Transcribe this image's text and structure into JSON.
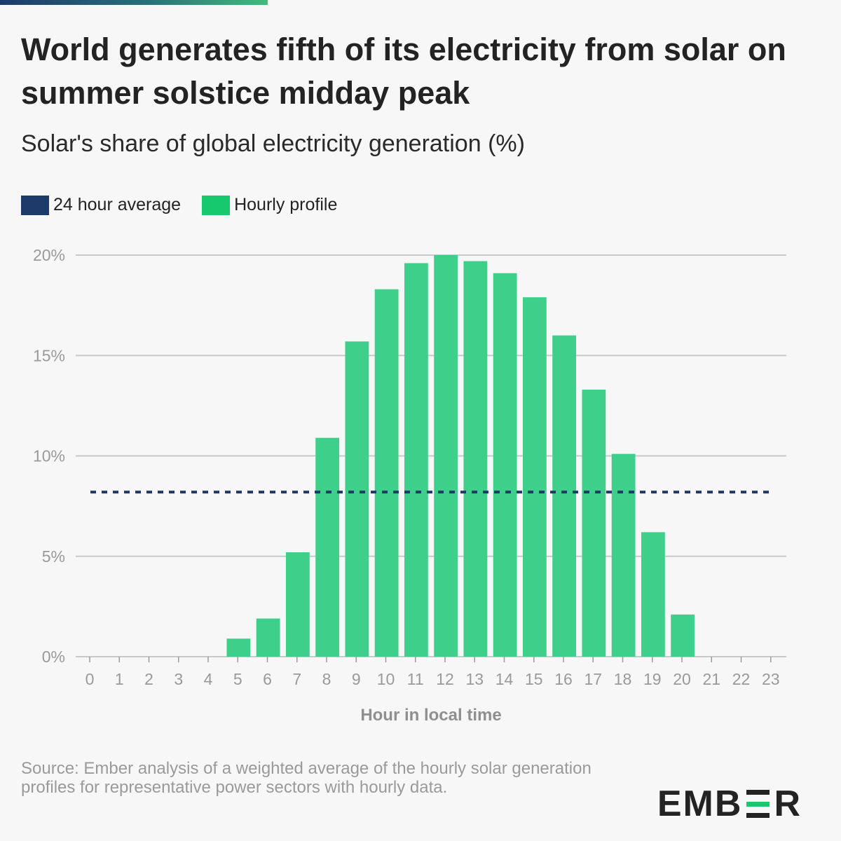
{
  "title": "World generates fifth of its electricity from solar on summer solstice midday peak",
  "subtitle": "Solar's share of global electricity generation (%)",
  "legend": [
    {
      "label": "24 hour average",
      "color": "#1e3a6b"
    },
    {
      "label": "Hourly profile",
      "color": "#17c96e"
    }
  ],
  "source": "Source: Ember analysis of a weighted average of the hourly solar generation profiles for representative power sectors with hourly data.",
  "logo": {
    "left": "EMB",
    "right": "R"
  },
  "colors": {
    "bar": "#3ed08a",
    "average": "#1e3a6b",
    "grid": "#c9c9c9",
    "axis": "#9a9a9a"
  },
  "chart_data": {
    "type": "bar",
    "title": "World generates fifth of its electricity from solar on summer solstice midday peak",
    "ylabel": "Solar's share of global electricity generation (%)",
    "xlabel": "Hour in local time",
    "categories": [
      "0",
      "1",
      "2",
      "3",
      "4",
      "5",
      "6",
      "7",
      "8",
      "9",
      "10",
      "11",
      "12",
      "13",
      "14",
      "15",
      "16",
      "17",
      "18",
      "19",
      "20",
      "21",
      "22",
      "23"
    ],
    "series": [
      {
        "name": "Hourly profile",
        "values": [
          0,
          0,
          0,
          0,
          0,
          0.9,
          1.9,
          5.2,
          10.9,
          15.7,
          18.3,
          19.6,
          20.0,
          19.7,
          19.1,
          17.9,
          16.0,
          13.3,
          10.1,
          6.2,
          2.1,
          0,
          0,
          0
        ]
      }
    ],
    "average": {
      "name": "24 hour average",
      "value": 8.2
    },
    "ylim": [
      0,
      20
    ],
    "yticks": [
      0,
      5,
      10,
      15,
      20
    ],
    "ytick_labels": [
      "0%",
      "5%",
      "10%",
      "15%",
      "20%"
    ],
    "grid": true,
    "legend_position": "top-left"
  }
}
